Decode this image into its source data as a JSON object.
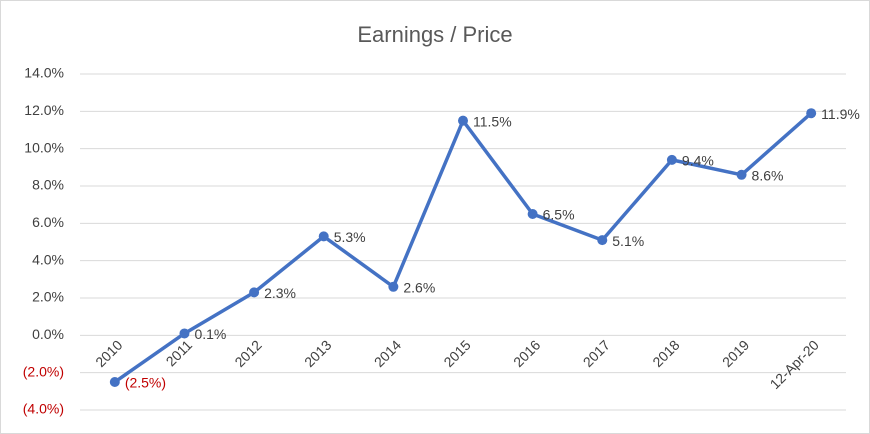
{
  "chart_data": {
    "type": "line",
    "title": "Earnings / Price",
    "categories": [
      "2010",
      "2011",
      "2012",
      "2013",
      "2014",
      "2015",
      "2016",
      "2017",
      "2018",
      "2019",
      "12-Apr-20"
    ],
    "values": [
      -2.5,
      0.1,
      2.3,
      5.3,
      2.6,
      11.5,
      6.5,
      5.1,
      9.4,
      8.6,
      11.9
    ],
    "value_labels": [
      "(2.5%)",
      "0.1%",
      "2.3%",
      "5.3%",
      "2.6%",
      "11.5%",
      "6.5%",
      "5.1%",
      "9.4%",
      "8.6%",
      "11.9%"
    ],
    "color": "#4472c4",
    "negative_color": "#c00000",
    "ylim": [
      -4,
      14
    ],
    "yticks": [
      {
        "value": -4,
        "label": "(4.0%)"
      },
      {
        "value": -2,
        "label": "(2.0%)"
      },
      {
        "value": 0,
        "label": "0.0%"
      },
      {
        "value": 2,
        "label": "2.0%"
      },
      {
        "value": 4,
        "label": "4.0%"
      },
      {
        "value": 6,
        "label": "6.0%"
      },
      {
        "value": 8,
        "label": "8.0%"
      },
      {
        "value": 10,
        "label": "10.0%"
      },
      {
        "value": 12,
        "label": "12.0%"
      },
      {
        "value": 14,
        "label": "14.0%"
      }
    ],
    "grid": true
  }
}
